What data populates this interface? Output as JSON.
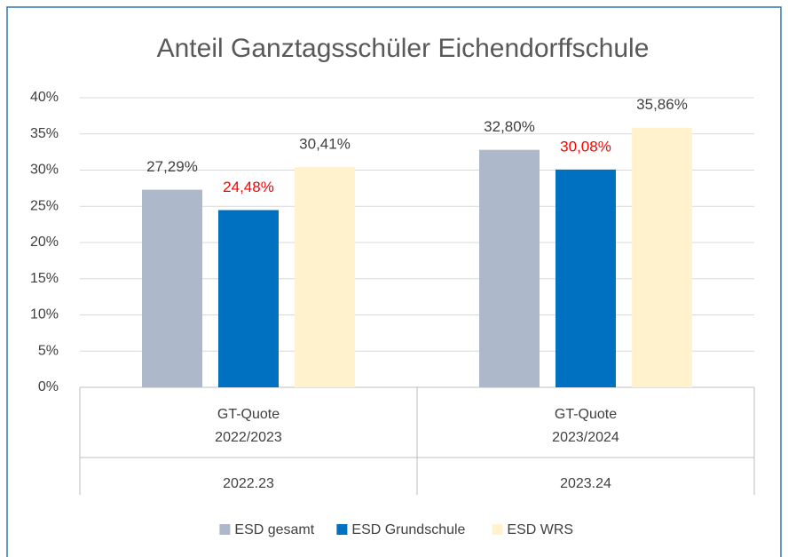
{
  "chart_data": {
    "type": "bar",
    "title": "Anteil Ganztagsschüler Eichendorffschule",
    "categories": [
      [
        "GT-Quote",
        "2022/2023"
      ],
      [
        "GT-Quote",
        "2023/2024"
      ]
    ],
    "category_groups": [
      "2022.23",
      "2023.24"
    ],
    "series": [
      {
        "name": "ESD gesamt",
        "color": "#adb9ca",
        "label_color": "#404040",
        "values": [
          27.29,
          32.8
        ],
        "value_labels": [
          "27,29%",
          "32,80%"
        ]
      },
      {
        "name": "ESD Grundschule",
        "color": "#0070c0",
        "label_color": "#ff0000",
        "values": [
          24.48,
          30.08
        ],
        "value_labels": [
          "24,48%",
          "30,08%"
        ]
      },
      {
        "name": "ESD WRS",
        "color": "#fff2cc",
        "label_color": "#404040",
        "values": [
          30.41,
          35.86
        ],
        "value_labels": [
          "30,41%",
          "35,86%"
        ]
      }
    ],
    "ylim": [
      0,
      40
    ],
    "yticks": [
      {
        "value": 0,
        "label": "0%"
      },
      {
        "value": 5,
        "label": "5%"
      },
      {
        "value": 10,
        "label": "10%"
      },
      {
        "value": 15,
        "label": "15%"
      },
      {
        "value": 20,
        "label": "20%"
      },
      {
        "value": 25,
        "label": "25%"
      },
      {
        "value": 30,
        "label": "30%"
      },
      {
        "value": 35,
        "label": "35%"
      },
      {
        "value": 40,
        "label": "40%"
      }
    ],
    "grid": true,
    "legend": "bottom"
  }
}
